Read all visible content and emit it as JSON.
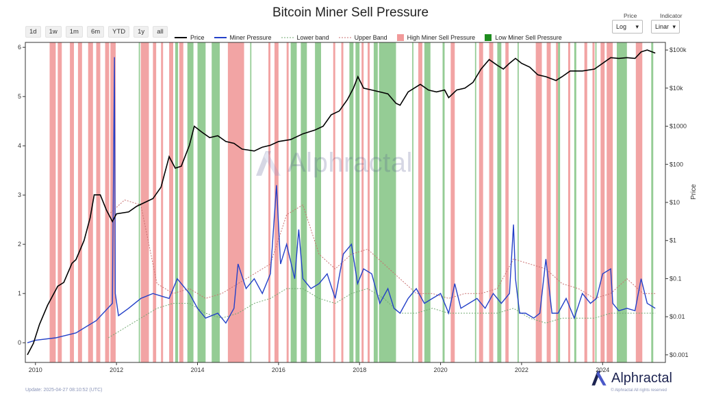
{
  "title": "Bitcoin Miner Sell Pressure",
  "range_buttons": [
    "1d",
    "1w",
    "1m",
    "6m",
    "YTD",
    "1y",
    "all"
  ],
  "controls": {
    "price_label": "Price",
    "price_value": "Log",
    "indicator_label": "Indicator",
    "indicator_value": "Linar"
  },
  "legend": [
    {
      "label": "Price",
      "kind": "line",
      "color": "#000000"
    },
    {
      "label": "Miner Pressure",
      "kind": "line",
      "color": "#2340c8"
    },
    {
      "label": "Lower band",
      "kind": "dotted",
      "color": "#6fa86f"
    },
    {
      "label": "Upper Band",
      "kind": "dotted",
      "color": "#c86f6f"
    },
    {
      "label": "High Miner Sell Pressure",
      "kind": "square",
      "color": "#f19a9a"
    },
    {
      "label": "Low Miner Sell Pressure",
      "kind": "square",
      "color": "#1e8c1e"
    }
  ],
  "watermark": "Alphractal",
  "brand": "Alphractal",
  "footer_update": "Update: 2025-04-27 08:10:52 (UTC)",
  "footer_rights": "© Alphractal All rights reserved",
  "right_axis_label": "Price",
  "colors": {
    "price": "#000000",
    "pressure": "#2340c8",
    "upper_band": "#c86f6f",
    "lower_band": "#6fa86f",
    "high_zone": "#f19a9a",
    "low_zone": "#8fc98f"
  },
  "chart_data": {
    "type": "line",
    "x_axis": {
      "range": [
        2009.75,
        2025.55
      ],
      "ticks": [
        2010,
        2012,
        2014,
        2016,
        2018,
        2020,
        2022,
        2024
      ]
    },
    "y_left": {
      "label": "",
      "range": [
        -0.4,
        6.1
      ],
      "ticks": [
        0,
        1,
        2,
        3,
        4,
        5,
        6
      ]
    },
    "y_right": {
      "label": "Price",
      "scale": "log",
      "range_log10": [
        -3.2,
        5.2
      ],
      "ticks": [
        "$0.001",
        "$0.01",
        "$0.1",
        "$1",
        "$10",
        "$100",
        "$1000",
        "$10k",
        "$100k"
      ],
      "tick_values_log10": [
        -3,
        -2,
        -1,
        0,
        1,
        2,
        3,
        4,
        5
      ]
    },
    "grid": false,
    "series": [
      {
        "name": "Price",
        "axis": "right",
        "x": [
          2009.8,
          2009.95,
          2010.1,
          2010.3,
          2010.5,
          2010.55,
          2010.7,
          2010.9,
          2011.0,
          2011.2,
          2011.35,
          2011.45,
          2011.6,
          2011.75,
          2011.9,
          2012.0,
          2012.3,
          2012.5,
          2012.7,
          2012.9,
          2013.1,
          2013.25,
          2013.3,
          2013.45,
          2013.6,
          2013.8,
          2013.92,
          2014.1,
          2014.3,
          2014.5,
          2014.7,
          2014.9,
          2015.1,
          2015.4,
          2015.6,
          2015.8,
          2016.0,
          2016.3,
          2016.6,
          2016.9,
          2017.1,
          2017.3,
          2017.5,
          2017.7,
          2017.85,
          2017.96,
          2018.1,
          2018.3,
          2018.5,
          2018.7,
          2018.9,
          2019.0,
          2019.2,
          2019.5,
          2019.7,
          2019.9,
          2020.1,
          2020.2,
          2020.4,
          2020.6,
          2020.8,
          2021.0,
          2021.2,
          2021.4,
          2021.55,
          2021.7,
          2021.85,
          2022.0,
          2022.2,
          2022.4,
          2022.6,
          2022.85,
          2023.0,
          2023.2,
          2023.5,
          2023.8,
          2024.0,
          2024.2,
          2024.4,
          2024.6,
          2024.8,
          2024.95,
          2025.1,
          2025.3
        ],
        "values_log10": [
          -3.0,
          -2.7,
          -2.2,
          -1.7,
          -1.3,
          -1.2,
          -1.1,
          -0.6,
          -0.5,
          0.0,
          0.6,
          1.2,
          1.2,
          0.8,
          0.5,
          0.7,
          0.75,
          0.9,
          1.0,
          1.1,
          1.4,
          2.0,
          2.2,
          1.9,
          1.95,
          2.5,
          3.0,
          2.85,
          2.7,
          2.75,
          2.6,
          2.55,
          2.4,
          2.35,
          2.45,
          2.5,
          2.6,
          2.65,
          2.8,
          2.9,
          3.0,
          3.3,
          3.4,
          3.7,
          4.0,
          4.3,
          4.0,
          3.95,
          3.9,
          3.85,
          3.6,
          3.55,
          3.9,
          4.1,
          3.95,
          3.9,
          3.95,
          3.75,
          3.95,
          4.0,
          4.15,
          4.5,
          4.75,
          4.6,
          4.5,
          4.65,
          4.78,
          4.65,
          4.55,
          4.35,
          4.3,
          4.2,
          4.3,
          4.45,
          4.45,
          4.5,
          4.65,
          4.8,
          4.78,
          4.8,
          4.78,
          4.95,
          5.0,
          4.92
        ]
      },
      {
        "name": "Miner Pressure",
        "axis": "left",
        "x": [
          2009.8,
          2010.0,
          2010.5,
          2011.0,
          2011.5,
          2011.9,
          2011.95,
          2011.97,
          2012.05,
          2012.3,
          2012.6,
          2012.9,
          2013.1,
          2013.3,
          2013.5,
          2013.8,
          2014.0,
          2014.2,
          2014.5,
          2014.7,
          2014.9,
          2015.0,
          2015.2,
          2015.4,
          2015.6,
          2015.8,
          2015.95,
          2016.05,
          2016.2,
          2016.4,
          2016.5,
          2016.6,
          2016.8,
          2017.0,
          2017.2,
          2017.4,
          2017.6,
          2017.8,
          2017.95,
          2018.1,
          2018.3,
          2018.5,
          2018.7,
          2018.85,
          2019.0,
          2019.2,
          2019.4,
          2019.6,
          2019.8,
          2020.0,
          2020.2,
          2020.35,
          2020.5,
          2020.7,
          2020.9,
          2021.1,
          2021.3,
          2021.5,
          2021.7,
          2021.8,
          2021.85,
          2021.95,
          2022.1,
          2022.3,
          2022.45,
          2022.6,
          2022.75,
          2022.9,
          2023.1,
          2023.3,
          2023.5,
          2023.7,
          2023.85,
          2024.0,
          2024.2,
          2024.25,
          2024.4,
          2024.6,
          2024.8,
          2024.95,
          2025.1,
          2025.3
        ],
        "values": [
          0.0,
          0.05,
          0.1,
          0.2,
          0.45,
          0.8,
          5.8,
          1.0,
          0.55,
          0.7,
          0.9,
          1.0,
          0.95,
          0.9,
          1.3,
          1.0,
          0.7,
          0.5,
          0.6,
          0.4,
          0.7,
          1.6,
          1.1,
          1.3,
          1.0,
          1.4,
          3.2,
          1.6,
          2.0,
          1.3,
          2.3,
          1.3,
          1.1,
          1.2,
          1.4,
          0.9,
          1.8,
          2.0,
          1.2,
          1.5,
          1.4,
          0.8,
          1.1,
          0.7,
          0.6,
          0.9,
          1.1,
          0.8,
          0.9,
          1.0,
          0.6,
          1.2,
          0.7,
          0.8,
          0.9,
          0.7,
          1.0,
          0.8,
          1.0,
          2.4,
          1.3,
          0.6,
          0.6,
          0.5,
          0.6,
          1.7,
          0.6,
          0.6,
          0.9,
          0.5,
          1.0,
          0.8,
          0.9,
          1.4,
          1.5,
          0.8,
          0.65,
          0.7,
          0.65,
          1.3,
          0.8,
          0.7
        ]
      },
      {
        "name": "Upper Band",
        "axis": "left",
        "x": [
          2011.8,
          2012.2,
          2012.6,
          2013.0,
          2013.4,
          2013.8,
          2014.2,
          2014.6,
          2015.0,
          2015.4,
          2015.8,
          2016.2,
          2016.6,
          2017.0,
          2017.4,
          2017.8,
          2018.2,
          2018.6,
          2019.0,
          2019.4,
          2019.8,
          2020.2,
          2020.6,
          2021.0,
          2021.4,
          2021.8,
          2022.2,
          2022.6,
          2023.0,
          2023.4,
          2023.8,
          2024.2,
          2024.6,
          2025.0,
          2025.3
        ],
        "values": [
          2.6,
          2.9,
          2.8,
          1.2,
          1.0,
          1.1,
          0.9,
          1.0,
          1.2,
          1.4,
          1.6,
          2.6,
          2.8,
          1.8,
          1.5,
          1.8,
          1.9,
          1.6,
          1.3,
          1.0,
          1.0,
          0.9,
          1.0,
          1.0,
          1.1,
          1.7,
          1.6,
          1.5,
          1.2,
          1.1,
          0.9,
          1.0,
          1.3,
          1.0,
          1.0
        ]
      },
      {
        "name": "Lower band",
        "axis": "left",
        "x": [
          2011.8,
          2012.2,
          2012.6,
          2013.0,
          2013.4,
          2013.8,
          2014.2,
          2014.6,
          2015.0,
          2015.4,
          2015.8,
          2016.2,
          2016.6,
          2017.0,
          2017.4,
          2017.8,
          2018.2,
          2018.6,
          2019.0,
          2019.4,
          2019.8,
          2020.2,
          2020.6,
          2021.0,
          2021.4,
          2021.8,
          2022.2,
          2022.6,
          2023.0,
          2023.4,
          2023.8,
          2024.2,
          2024.6,
          2025.0,
          2025.3
        ],
        "values": [
          0.1,
          0.3,
          0.5,
          0.7,
          0.8,
          0.8,
          0.6,
          0.5,
          0.6,
          0.8,
          0.9,
          1.1,
          1.1,
          0.9,
          0.8,
          1.0,
          1.1,
          0.9,
          0.6,
          0.6,
          0.7,
          0.6,
          0.6,
          0.6,
          0.6,
          0.7,
          0.5,
          0.4,
          0.5,
          0.5,
          0.5,
          0.6,
          0.6,
          0.6,
          0.6
        ]
      }
    ],
    "high_pressure_zones": [
      [
        2010.35,
        2010.5
      ],
      [
        2010.55,
        2010.65
      ],
      [
        2010.85,
        2010.95
      ],
      [
        2011.05,
        2011.15
      ],
      [
        2011.3,
        2011.42
      ],
      [
        2011.5,
        2011.6
      ],
      [
        2011.72,
        2011.82
      ],
      [
        2011.85,
        2011.98
      ],
      [
        2012.6,
        2012.8
      ],
      [
        2012.9,
        2012.98
      ],
      [
        2013.1,
        2013.15
      ],
      [
        2013.3,
        2013.4
      ],
      [
        2013.55,
        2013.65
      ],
      [
        2014.75,
        2015.15
      ],
      [
        2015.75,
        2015.8
      ],
      [
        2015.9,
        2016.0
      ],
      [
        2016.2,
        2016.25
      ],
      [
        2017.35,
        2017.4
      ],
      [
        2017.55,
        2017.6
      ],
      [
        2018.05,
        2018.1
      ],
      [
        2018.2,
        2018.25
      ],
      [
        2019.45,
        2019.55
      ],
      [
        2020.25,
        2020.35
      ],
      [
        2020.95,
        2021.05
      ],
      [
        2021.2,
        2021.3
      ],
      [
        2021.6,
        2021.68
      ],
      [
        2022.35,
        2022.5
      ],
      [
        2022.62,
        2022.72
      ],
      [
        2022.85,
        2022.9
      ],
      [
        2023.15,
        2023.2
      ],
      [
        2023.55,
        2023.62
      ],
      [
        2023.75,
        2023.8
      ],
      [
        2023.95,
        2024.05
      ],
      [
        2024.1,
        2024.25
      ],
      [
        2024.82,
        2024.98
      ]
    ],
    "low_pressure_zones": [
      [
        2012.55,
        2012.58
      ],
      [
        2013.45,
        2013.52
      ],
      [
        2013.75,
        2013.9
      ],
      [
        2014.0,
        2014.2
      ],
      [
        2014.35,
        2014.55
      ],
      [
        2015.3,
        2015.33
      ],
      [
        2016.3,
        2016.45
      ],
      [
        2016.55,
        2016.7
      ],
      [
        2016.9,
        2017.05
      ],
      [
        2017.75,
        2017.85
      ],
      [
        2017.9,
        2018.0
      ],
      [
        2018.35,
        2018.45
      ],
      [
        2018.48,
        2018.9
      ],
      [
        2019.3,
        2019.33
      ],
      [
        2019.6,
        2019.75
      ],
      [
        2020.05,
        2020.1
      ],
      [
        2020.85,
        2020.88
      ],
      [
        2021.4,
        2021.5
      ],
      [
        2021.9,
        2021.93
      ],
      [
        2022.9,
        2022.95
      ],
      [
        2023.3,
        2023.35
      ],
      [
        2023.82,
        2023.85
      ],
      [
        2024.35,
        2024.6
      ],
      [
        2025.2,
        2025.25
      ]
    ]
  }
}
